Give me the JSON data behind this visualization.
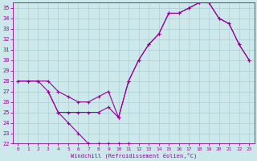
{
  "xlabel": "Windchill (Refroidissement éolien,°C)",
  "bg_color": "#cce8eb",
  "line_color": "#990099",
  "grid_color": "#aacdd4",
  "xlim": [
    -0.5,
    23.5
  ],
  "ylim": [
    22,
    35.5
  ],
  "xticks": [
    0,
    1,
    2,
    3,
    4,
    5,
    6,
    7,
    8,
    9,
    10,
    11,
    12,
    13,
    14,
    15,
    16,
    17,
    18,
    19,
    20,
    21,
    22,
    23
  ],
  "yticks": [
    22,
    23,
    24,
    25,
    26,
    27,
    28,
    29,
    30,
    31,
    32,
    33,
    34,
    35
  ],
  "curve1_x": [
    0,
    1,
    2,
    3,
    4,
    5,
    6,
    7,
    8,
    9,
    10,
    11
  ],
  "curve1_y": [
    28,
    28,
    28,
    27,
    25,
    24,
    23,
    22,
    22,
    22,
    22,
    22
  ],
  "curve2_x": [
    0,
    1,
    2,
    3,
    4,
    5,
    6,
    7,
    8,
    9,
    10,
    11,
    12,
    13,
    14,
    15,
    16,
    17,
    18,
    19,
    20,
    21,
    22,
    23
  ],
  "curve2_y": [
    28,
    28,
    28,
    28,
    27,
    26.5,
    26,
    26,
    26.5,
    27,
    24.5,
    28,
    30,
    31.5,
    32.5,
    34.5,
    34.5,
    35,
    35.5,
    35.5,
    34,
    33.5,
    31.5,
    30
  ],
  "curve3_x": [
    3,
    4,
    5,
    6,
    7,
    8,
    9,
    10,
    11,
    12,
    13,
    14,
    15,
    16,
    17,
    18,
    19,
    20,
    21,
    22,
    23
  ],
  "curve3_y": [
    27,
    25,
    25,
    25,
    25,
    25,
    25.5,
    24.5,
    28,
    30,
    31.5,
    32.5,
    34.5,
    34.5,
    35,
    35.5,
    35.5,
    34,
    33.5,
    31.5,
    30
  ]
}
